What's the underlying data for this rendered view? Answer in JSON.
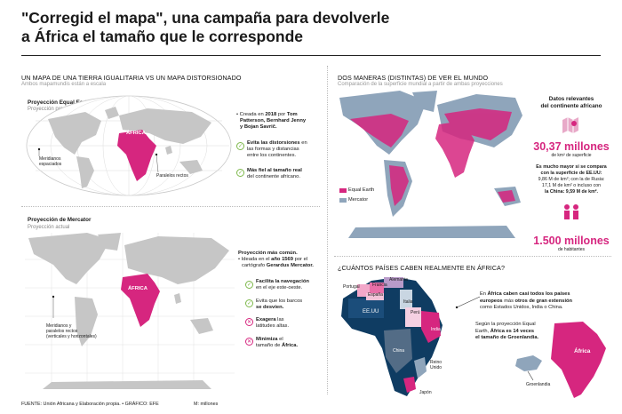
{
  "header": {
    "title_line1": "\"Corregid el mapa\", una campaña para devolverle",
    "title_line2": "a África el tamaño que le corresponde"
  },
  "left_top": {
    "section_title": "UN MAPA DE UNA TIERRA IGUALITARIA VS UN MAPA DISTORSIONADO",
    "section_sub": "Ambos mapamundis están a escala",
    "map_title": "Proyección Equal Earth Map",
    "map_sub": "Proyección propuesta",
    "africa_label": "ÁFRICA",
    "meridians_label1": "Meridianos",
    "meridians_label2": "espaciados",
    "parallels_label": "Paralelos rectos",
    "intro_a": "• Creada en ",
    "intro_year": "2018",
    "intro_b": " por ",
    "intro_names1": "Tom",
    "intro_names2": "Patterson, Bernhard Jenny",
    "intro_names3": "y Bojan Savrič.",
    "feature1_bold": "Evita las distorsiones",
    "feature1_rest1": " en",
    "feature1_rest2": "las formas y distancias",
    "feature1_rest3": "entre los continentes.",
    "feature2_bold": "Más fiel al tamaño real",
    "feature2_rest": "del continente africano."
  },
  "left_bottom": {
    "map_title": "Proyección de Mercator",
    "map_sub": "Proyección actual",
    "africa_label": "ÁFRICA",
    "meridians_label1": "Meridianos y",
    "meridians_label2": "paralelos rectos",
    "meridians_label3": "(verticales y horizontales)",
    "intro_bold": "Proyección más común.",
    "intro_rest1": "• Ideada en el ",
    "intro_year": "año 1569",
    "intro_rest2": " por el",
    "intro_rest3": "cartógrafo ",
    "intro_name": "Gerardus Mercator.",
    "pro1_bold": "Facilita la navegación",
    "pro1_rest": "en el eje este-oeste.",
    "pro2_a": "Evita que los barcos",
    "pro2_bold": "se desvíen.",
    "con1_bold": "Exagera",
    "con1_rest1": " las",
    "con1_rest2": "latitudes altas.",
    "con2_bold": "Minimiza",
    "con2_rest1": " el",
    "con2_rest2": "tamaño de ",
    "con2_bold2": "África."
  },
  "right_top": {
    "section_title": "DOS MANERAS (DISTINTAS) DE VER EL MUNDO",
    "section_sub": "Comparación de la superficie mundial a partir de ambas proyecciones",
    "legend_equal": "Equal Earth",
    "legend_mercator": "Mercator",
    "facts_title1": "Datos relevantes",
    "facts_title2": "del continente africano",
    "area_value": "30,37 millones",
    "area_unit": "de km² de superficie",
    "compare1": "Es mucho mayor si se compara",
    "compare2": "con la superficie de EE.UU:",
    "compare3": "9,86 M de km²; con la de Rusia:",
    "compare4": "17,1 M de km² o incluso con",
    "compare5": "la China: 9,59 M de km².",
    "pop_value": "1.500 millones",
    "pop_unit": "de habitantes",
    "colors": {
      "equal": "#d6267f",
      "mercator": "#8fa5bb"
    }
  },
  "right_bottom": {
    "section_title": "¿CUÁNTOS PAÍSES CABEN REALMENTE EN ÁFRICA?",
    "countries": [
      "Portugal",
      "Francia",
      "Alemania",
      "España",
      "Italia",
      "EE.UU",
      "Perú",
      "India",
      "China",
      "Reino Unido",
      "Japón"
    ],
    "note1_a": "En ",
    "note1_bold1": "África caben casi todos los países",
    "note1_bold2": "europeos",
    "note1_b": " más ",
    "note1_bold3": "otros de gran extensión",
    "note1_c": "como Estados Unidos, India o China.",
    "note2_a": "Según la proyección Equal",
    "note2_b": "Earth, ",
    "note2_bold1": "África es 14 veces",
    "note2_bold2": "el tamaño de Groenlandia.",
    "greenland_label": "Groenlandia",
    "africa_label": "África"
  },
  "footer": {
    "source": "FUENTE: Unión Africana y Elaboración propia. • GRÁFICO: EFE",
    "units": "M: millones"
  }
}
